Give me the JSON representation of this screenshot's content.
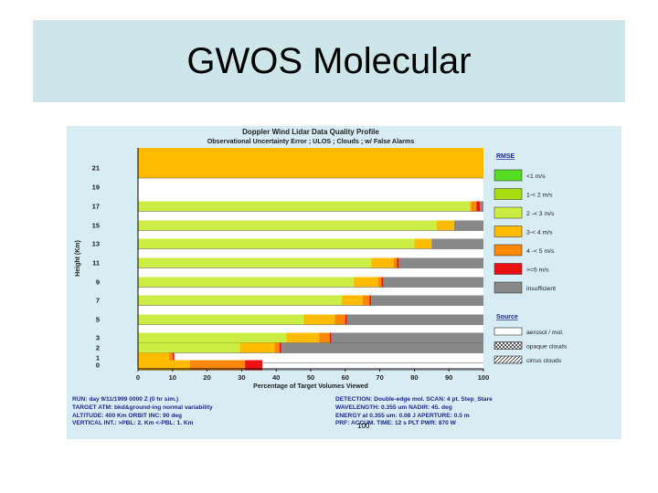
{
  "slide": {
    "title": "GWOS Molecular",
    "page_number": "100"
  },
  "chart_data": {
    "type": "bar",
    "orientation": "horizontal-stacked",
    "title": "Doppler Wind Lidar Data Quality Profile",
    "subtitle": "Observational Uncertainty Error ; ULOS ; Clouds ; w/ False Alarms",
    "xlabel": "Percentage of Target Volumes Viewed",
    "ylabel": "Height (Km)",
    "xlim": [
      0,
      100
    ],
    "x_ticks": [
      0,
      10,
      20,
      30,
      40,
      50,
      60,
      70,
      80,
      90,
      100
    ],
    "y_ticks": [
      "21",
      "19",
      "17",
      "15",
      "13",
      "11",
      "9",
      "7",
      "5",
      "3",
      "2",
      "1",
      "0"
    ],
    "grid": false,
    "legend": {
      "placement": "right",
      "rmse_title": "RMSE",
      "source_title": "Source"
    },
    "categories": [
      "21",
      "19",
      "17",
      "15",
      "13",
      "11",
      "9",
      "7",
      "5",
      "3",
      "2",
      "1",
      "0"
    ],
    "series": [
      {
        "name": "<1 m/s",
        "color": "#55dd22",
        "values": [
          0,
          0,
          0,
          0,
          0,
          0,
          0,
          0,
          0,
          0,
          0,
          0,
          0
        ]
      },
      {
        "name": "1-< 2 m/s",
        "color": "#aadd11",
        "values": [
          0,
          0,
          0,
          0,
          0,
          0,
          0,
          0,
          0,
          0,
          0,
          0,
          0
        ]
      },
      {
        "name": "2 -< 3 m/s",
        "color": "#ccee44",
        "values": [
          0,
          0,
          96,
          86.5,
          80,
          67.5,
          62.5,
          59,
          48,
          43,
          29.5,
          0,
          0
        ]
      },
      {
        "name": "3-< 4 m/s",
        "color": "#ffbb00",
        "values": [
          100,
          100,
          0.5,
          5,
          5,
          6.5,
          7,
          6,
          9,
          9.5,
          10,
          9,
          15
        ]
      },
      {
        "name": "4 -< 5 m/s",
        "color": "#ff8800",
        "values": [
          0,
          0,
          1.5,
          0,
          0,
          1,
          1,
          2,
          3,
          3,
          1.5,
          1,
          16
        ]
      },
      {
        "name": ">=5 m/s",
        "color": "#ee1111",
        "values": [
          0,
          0,
          1,
          0,
          0,
          0.5,
          0.5,
          0.5,
          0.5,
          0.5,
          0.5,
          0.5,
          5
        ]
      },
      {
        "name": "insufficient",
        "color": "#888888",
        "values": [
          0,
          0,
          1,
          8.5,
          15,
          24.5,
          29,
          32.5,
          39.5,
          44,
          58.5,
          0,
          0
        ]
      }
    ],
    "sources": [
      {
        "name": "aerosol / mol.",
        "pattern": "none"
      },
      {
        "name": "opaque clouds",
        "pattern": "cross"
      },
      {
        "name": "cirrus clouds",
        "pattern": "diag"
      }
    ],
    "run_info": {
      "col1": [
        "RUN:  day 9/11/1999 0000 Z (0 hr sim.)",
        "TARGET ATM:  bkd&ground-ing normal variability",
        "ALTITUDE: 400 Km     ORBIT INC: 90 deg",
        "VERTICAL INT.: >PBL: 2. Km   <-PBL: 1. Km"
      ],
      "col2": [
        "DETECTION: Double-edge mol.  SCAN: 4 pt. Step_Stare",
        "WAVELENGTH: 0.355 um     NADIR: 45. deg",
        "ENERGY at 0.355 um:  0.08 J    APERTURE: 0.5 m",
        "PRF:         ACCUM. TIME: 12 s PLT PWR: 870 W"
      ]
    }
  }
}
